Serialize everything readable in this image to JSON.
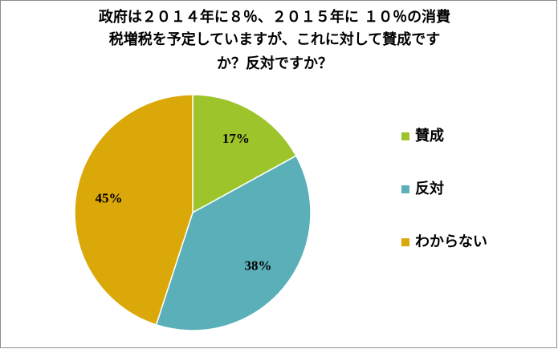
{
  "chart_data": {
    "type": "pie",
    "title": [
      "政府は２０１４年に８％、２０１５年に １０％の消費",
      "税増税を予定していますが、これに対して賛成です",
      "か？反対ですか？"
    ],
    "categories": [
      "賛成",
      "反対",
      "わからない"
    ],
    "values": [
      17,
      38,
      45
    ],
    "value_labels": [
      "17%",
      "38%",
      "45%"
    ],
    "colors": [
      "#9dc42b",
      "#5aafb9",
      "#dba80a"
    ],
    "legend": "right"
  }
}
